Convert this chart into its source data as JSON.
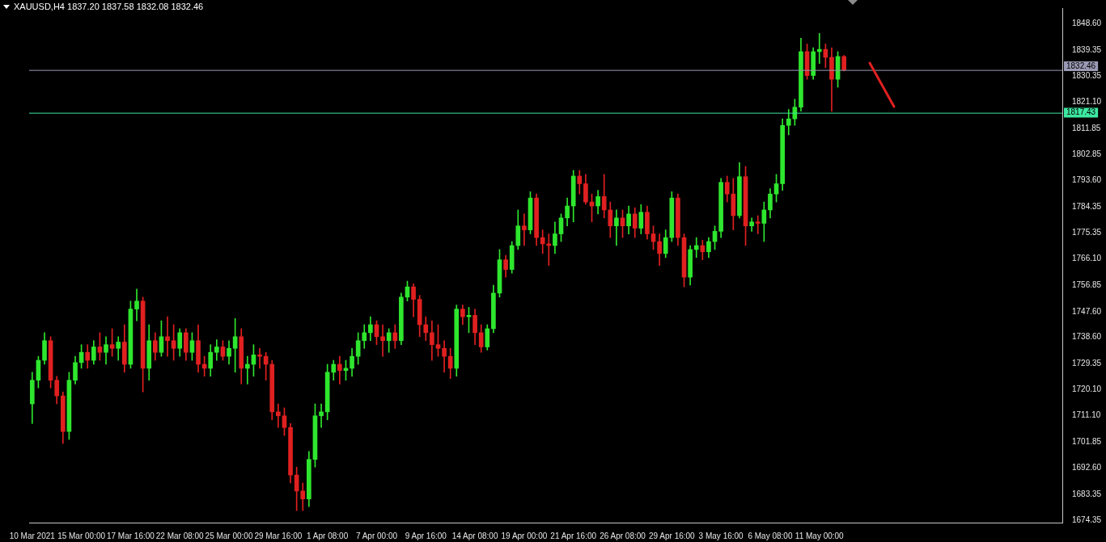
{
  "chart_data": {
    "type": "candlestick",
    "title": "XAUUSD,H4 1837.20 1837.58 1832.08 1832.46",
    "categories": [
      "10 Mar 2021",
      null,
      null,
      null,
      null,
      null,
      null,
      null,
      "15 Mar 00:00",
      null,
      null,
      null,
      null,
      null,
      null,
      null,
      "17 Mar 16:00",
      null,
      null,
      null,
      null,
      null,
      null,
      null,
      "22 Mar 08:00",
      null,
      null,
      null,
      null,
      null,
      null,
      null,
      "25 Mar 00:00",
      null,
      null,
      null,
      null,
      null,
      null,
      null,
      "29 Mar 16:00",
      null,
      null,
      null,
      null,
      null,
      null,
      null,
      "1 Apr 08:00",
      null,
      null,
      null,
      null,
      null,
      null,
      null,
      "7 Apr 00:00",
      null,
      null,
      null,
      null,
      null,
      null,
      null,
      "9 Apr 16:00",
      null,
      null,
      null,
      null,
      null,
      null,
      null,
      "14 Apr 08:00",
      null,
      null,
      null,
      null,
      null,
      null,
      null,
      "19 Apr 00:00",
      null,
      null,
      null,
      null,
      null,
      null,
      null,
      "21 Apr 16:00",
      null,
      null,
      null,
      null,
      null,
      null,
      null,
      "26 Apr 08:00",
      null,
      null,
      null,
      null,
      null,
      null,
      null,
      "29 Apr 16:00",
      null,
      null,
      null,
      null,
      null,
      null,
      null,
      "3 May 16:00",
      null,
      null,
      null,
      null,
      null,
      null,
      null,
      "6 May 08:00",
      null,
      null,
      null,
      null,
      null,
      null,
      null,
      "11 May 00:00",
      null,
      null,
      null,
      null,
      null,
      null,
      null,
      null,
      null,
      null,
      null,
      null,
      null,
      null,
      null,
      null,
      null,
      null,
      null,
      null,
      null,
      null,
      null,
      null,
      null,
      null,
      null,
      null,
      null,
      null,
      null,
      null,
      null,
      null,
      null,
      null,
      null,
      null,
      null
    ],
    "ohlc": [
      [
        1715.2,
        1726.3,
        1708.3,
        1723.5
      ],
      [
        1723.5,
        1731.9,
        1720.8,
        1730.5
      ],
      [
        1730.5,
        1740.2,
        1729.1,
        1737.4
      ],
      [
        1737.4,
        1738.8,
        1720.8,
        1723.5
      ],
      [
        1723.5,
        1724.9,
        1715.2,
        1718.0
      ],
      [
        1718.0,
        1719.4,
        1701.3,
        1705.5
      ],
      [
        1705.5,
        1726.3,
        1702.7,
        1723.5
      ],
      [
        1723.5,
        1731.9,
        1722.2,
        1729.7
      ],
      [
        1729.7,
        1736.0,
        1727.7,
        1733.3
      ],
      [
        1733.3,
        1736.0,
        1727.7,
        1730.5
      ],
      [
        1730.5,
        1737.4,
        1729.1,
        1735.2
      ],
      [
        1735.2,
        1740.2,
        1730.5,
        1733.3
      ],
      [
        1733.3,
        1738.8,
        1729.1,
        1736.0
      ],
      [
        1736.0,
        1741.6,
        1731.9,
        1734.7
      ],
      [
        1734.7,
        1738.8,
        1730.5,
        1736.9
      ],
      [
        1736.9,
        1743.0,
        1726.3,
        1729.1
      ],
      [
        1729.1,
        1751.3,
        1727.7,
        1748.5
      ],
      [
        1748.5,
        1755.5,
        1744.4,
        1751.3
      ],
      [
        1751.3,
        1752.7,
        1719.4,
        1727.7
      ],
      [
        1727.7,
        1743.0,
        1723.5,
        1737.4
      ],
      [
        1737.4,
        1740.2,
        1730.5,
        1733.3
      ],
      [
        1733.3,
        1744.4,
        1731.9,
        1738.8
      ],
      [
        1738.8,
        1745.8,
        1731.9,
        1737.4
      ],
      [
        1737.4,
        1743.0,
        1730.5,
        1734.7
      ],
      [
        1734.7,
        1741.6,
        1731.9,
        1740.2
      ],
      [
        1740.2,
        1741.6,
        1730.5,
        1733.3
      ],
      [
        1733.3,
        1740.2,
        1730.5,
        1737.4
      ],
      [
        1737.4,
        1743.0,
        1726.3,
        1729.1
      ],
      [
        1729.1,
        1731.9,
        1724.9,
        1727.7
      ],
      [
        1727.7,
        1736.0,
        1724.9,
        1733.3
      ],
      [
        1733.3,
        1737.7,
        1730.5,
        1735.2
      ],
      [
        1735.2,
        1737.4,
        1730.5,
        1731.9
      ],
      [
        1731.9,
        1737.4,
        1729.1,
        1734.7
      ],
      [
        1734.7,
        1745.2,
        1726.3,
        1738.8
      ],
      [
        1738.8,
        1741.6,
        1722.2,
        1727.7
      ],
      [
        1727.7,
        1731.9,
        1722.2,
        1729.1
      ],
      [
        1729.1,
        1736.0,
        1724.9,
        1732.4
      ],
      [
        1732.4,
        1734.7,
        1727.7,
        1731.9
      ],
      [
        1731.9,
        1733.3,
        1723.5,
        1729.1
      ],
      [
        1729.1,
        1730.5,
        1709.6,
        1712.4
      ],
      [
        1712.4,
        1715.2,
        1706.9,
        1711.0
      ],
      [
        1711.0,
        1713.8,
        1704.1,
        1706.9
      ],
      [
        1706.9,
        1708.3,
        1687.4,
        1690.2
      ],
      [
        1690.2,
        1693.0,
        1677.7,
        1684.6
      ],
      [
        1684.6,
        1687.4,
        1677.7,
        1681.8
      ],
      [
        1681.8,
        1698.5,
        1679.1,
        1695.7
      ],
      [
        1695.7,
        1715.2,
        1693.0,
        1711.0
      ],
      [
        1711.0,
        1715.2,
        1706.9,
        1712.4
      ],
      [
        1712.4,
        1729.1,
        1709.6,
        1726.3
      ],
      [
        1726.3,
        1730.5,
        1723.5,
        1729.1
      ],
      [
        1729.1,
        1731.9,
        1722.2,
        1726.9
      ],
      [
        1726.9,
        1730.5,
        1723.5,
        1727.7
      ],
      [
        1727.7,
        1734.7,
        1724.9,
        1731.9
      ],
      [
        1731.9,
        1740.2,
        1729.1,
        1737.4
      ],
      [
        1737.4,
        1743.0,
        1734.7,
        1740.2
      ],
      [
        1740.2,
        1745.8,
        1737.4,
        1743.0
      ],
      [
        1743.0,
        1744.4,
        1736.0,
        1738.8
      ],
      [
        1738.8,
        1743.0,
        1731.9,
        1737.4
      ],
      [
        1737.4,
        1741.6,
        1733.3,
        1740.2
      ],
      [
        1740.2,
        1743.0,
        1734.7,
        1737.4
      ],
      [
        1737.4,
        1754.1,
        1736.0,
        1752.7
      ],
      [
        1752.7,
        1758.3,
        1751.3,
        1756.3
      ],
      [
        1756.3,
        1757.4,
        1745.8,
        1751.9
      ],
      [
        1751.9,
        1753.3,
        1738.8,
        1743.0
      ],
      [
        1743.0,
        1745.8,
        1737.4,
        1740.2
      ],
      [
        1740.2,
        1744.4,
        1730.5,
        1736.0
      ],
      [
        1736.0,
        1743.0,
        1731.9,
        1734.7
      ],
      [
        1734.7,
        1737.4,
        1726.3,
        1731.9
      ],
      [
        1731.9,
        1734.7,
        1724.1,
        1727.7
      ],
      [
        1727.7,
        1749.9,
        1724.9,
        1748.5
      ],
      [
        1748.5,
        1749.9,
        1743.0,
        1745.8
      ],
      [
        1745.8,
        1749.1,
        1740.2,
        1746.3
      ],
      [
        1746.3,
        1748.5,
        1736.0,
        1740.2
      ],
      [
        1740.2,
        1743.0,
        1733.3,
        1735.2
      ],
      [
        1735.2,
        1743.0,
        1734.1,
        1741.6
      ],
      [
        1741.6,
        1756.9,
        1740.2,
        1754.1
      ],
      [
        1754.1,
        1769.4,
        1752.7,
        1765.8
      ],
      [
        1765.8,
        1767.4,
        1759.7,
        1762.4
      ],
      [
        1762.4,
        1772.2,
        1761.1,
        1770.8
      ],
      [
        1770.8,
        1783.3,
        1769.4,
        1777.7
      ],
      [
        1777.7,
        1781.9,
        1770.8,
        1776.3
      ],
      [
        1776.3,
        1789.7,
        1774.9,
        1787.5
      ],
      [
        1787.5,
        1788.9,
        1770.8,
        1773.6
      ],
      [
        1773.6,
        1776.3,
        1768.0,
        1771.4
      ],
      [
        1771.4,
        1774.9,
        1763.8,
        1770.8
      ],
      [
        1770.8,
        1779.1,
        1768.0,
        1774.9
      ],
      [
        1774.9,
        1781.9,
        1772.2,
        1780.5
      ],
      [
        1780.5,
        1787.5,
        1777.7,
        1784.7
      ],
      [
        1784.7,
        1797.2,
        1779.1,
        1795.2
      ],
      [
        1795.2,
        1797.2,
        1788.9,
        1792.5
      ],
      [
        1792.5,
        1795.8,
        1785.3,
        1786.1
      ],
      [
        1786.1,
        1788.9,
        1779.1,
        1784.7
      ],
      [
        1784.7,
        1790.2,
        1781.9,
        1788.0
      ],
      [
        1788.0,
        1795.8,
        1780.5,
        1783.3
      ],
      [
        1783.3,
        1786.1,
        1773.6,
        1777.7
      ],
      [
        1777.7,
        1783.3,
        1770.8,
        1780.5
      ],
      [
        1780.5,
        1783.3,
        1773.6,
        1777.7
      ],
      [
        1777.7,
        1784.7,
        1774.9,
        1781.9
      ],
      [
        1781.9,
        1784.1,
        1773.6,
        1776.9
      ],
      [
        1776.9,
        1785.2,
        1774.9,
        1782.5
      ],
      [
        1782.5,
        1784.7,
        1773.0,
        1774.9
      ],
      [
        1774.9,
        1777.7,
        1769.4,
        1772.2
      ],
      [
        1772.2,
        1774.9,
        1763.8,
        1768.0
      ],
      [
        1768.0,
        1776.3,
        1766.6,
        1773.6
      ],
      [
        1773.6,
        1789.7,
        1772.2,
        1787.5
      ],
      [
        1787.5,
        1788.9,
        1770.8,
        1773.6
      ],
      [
        1773.6,
        1774.9,
        1756.3,
        1759.7
      ],
      [
        1759.7,
        1770.8,
        1756.9,
        1769.4
      ],
      [
        1769.4,
        1773.6,
        1766.6,
        1770.8
      ],
      [
        1770.8,
        1772.7,
        1765.8,
        1768.6
      ],
      [
        1768.6,
        1773.6,
        1766.6,
        1772.2
      ],
      [
        1772.2,
        1777.7,
        1769.4,
        1775.8
      ],
      [
        1775.8,
        1794.4,
        1773.6,
        1793.0
      ],
      [
        1793.0,
        1795.2,
        1786.1,
        1788.9
      ],
      [
        1788.9,
        1794.4,
        1776.3,
        1781.3
      ],
      [
        1781.3,
        1799.9,
        1780.5,
        1795.0
      ],
      [
        1795.0,
        1798.6,
        1770.8,
        1777.7
      ],
      [
        1777.7,
        1780.5,
        1775.8,
        1779.1
      ],
      [
        1779.1,
        1781.3,
        1774.9,
        1778.6
      ],
      [
        1778.6,
        1786.1,
        1772.2,
        1783.3
      ],
      [
        1783.3,
        1790.8,
        1780.5,
        1788.9
      ],
      [
        1788.9,
        1795.8,
        1786.1,
        1792.5
      ],
      [
        1792.5,
        1815.3,
        1790.2,
        1813.0
      ],
      [
        1813.0,
        1818.6,
        1809.7,
        1815.3
      ],
      [
        1815.3,
        1822.2,
        1813.0,
        1819.4
      ],
      [
        1819.4,
        1843.6,
        1818.0,
        1838.9
      ],
      [
        1838.9,
        1841.6,
        1829.2,
        1830.5
      ],
      [
        1830.5,
        1840.3,
        1829.2,
        1838.9
      ],
      [
        1838.9,
        1845.3,
        1834.7,
        1839.7
      ],
      [
        1839.7,
        1841.6,
        1833.3,
        1836.9
      ],
      [
        1836.9,
        1840.3,
        1818.0,
        1829.2
      ],
      [
        1829.2,
        1838.9,
        1826.4,
        1837.2
      ],
      [
        1837.2,
        1837.58,
        1832.08,
        1832.46
      ],
      null,
      null,
      null,
      null,
      null,
      null,
      null,
      null,
      null,
      null,
      null,
      null,
      null,
      null,
      null,
      null,
      null,
      null,
      null,
      null,
      null,
      null,
      null,
      null,
      null,
      null,
      null,
      null,
      null,
      null,
      null,
      null,
      null,
      null,
      null
    ],
    "colors": [
      "#2ee62e",
      "#2ee62e",
      "#2ee62e",
      "#e02020",
      "#e02020",
      "#e02020",
      "#2ee62e",
      "#2ee62e",
      "#2ee62e",
      "#e02020",
      "#2ee62e",
      "#e02020",
      "#2ee62e",
      "#e02020",
      "#2ee62e",
      "#e02020",
      "#2ee62e",
      "#2ee62e",
      "#e02020",
      "#2ee62e",
      "#e02020",
      "#2ee62e",
      "#e02020",
      "#e02020",
      "#2ee62e",
      "#e02020",
      "#2ee62e",
      "#e02020",
      "#e02020",
      "#2ee62e",
      "#2ee62e",
      "#e02020",
      "#2ee62e",
      "#2ee62e",
      "#e02020",
      "#2ee62e",
      "#2ee62e",
      "#e02020",
      "#e02020",
      "#e02020",
      "#e02020",
      "#e02020",
      "#e02020",
      "#e02020",
      "#e02020",
      "#2ee62e",
      "#2ee62e",
      "#2ee62e",
      "#2ee62e",
      "#2ee62e",
      "#e02020",
      "#2ee62e",
      "#2ee62e",
      "#2ee62e",
      "#2ee62e",
      "#2ee62e",
      "#e02020",
      "#e02020",
      "#2ee62e",
      "#e02020",
      "#2ee62e",
      "#2ee62e",
      "#e02020",
      "#e02020",
      "#e02020",
      "#e02020",
      "#e02020",
      "#e02020",
      "#e02020",
      "#2ee62e",
      "#e02020",
      "#2ee62e",
      "#e02020",
      "#e02020",
      "#2ee62e",
      "#2ee62e",
      "#2ee62e",
      "#e02020",
      "#2ee62e",
      "#2ee62e",
      "#e02020",
      "#2ee62e",
      "#e02020",
      "#e02020",
      "#e02020",
      "#2ee62e",
      "#2ee62e",
      "#2ee62e",
      "#2ee62e",
      "#e02020",
      "#e02020",
      "#e02020",
      "#2ee62e",
      "#e02020",
      "#e02020",
      "#2ee62e",
      "#e02020",
      "#2ee62e",
      "#e02020",
      "#2ee62e",
      "#e02020",
      "#e02020",
      "#e02020",
      "#2ee62e",
      "#2ee62e",
      "#e02020",
      "#e02020",
      "#2ee62e",
      "#2ee62e",
      "#e02020",
      "#2ee62e",
      "#2ee62e",
      "#2ee62e",
      "#e02020",
      "#e02020",
      "#2ee62e",
      "#e02020",
      "#2ee62e",
      "#e02020",
      "#2ee62e",
      "#2ee62e",
      "#2ee62e",
      "#2ee62e",
      "#2ee62e",
      "#2ee62e",
      "#2ee62e",
      "#e02020",
      "#2ee62e",
      "#2ee62e",
      "#e02020",
      "#e02020",
      "#2ee62e",
      "#e02020",
      null,
      null,
      null,
      null,
      null,
      null,
      null,
      null,
      null,
      null,
      null,
      null,
      null,
      null,
      null,
      null,
      null,
      null,
      null,
      null,
      null,
      null,
      null,
      null,
      null,
      null,
      null,
      null,
      null,
      null,
      null,
      null,
      null,
      null,
      null
    ],
    "ylim": [
      1673.5,
      1854.2
    ],
    "yticks": [
      {
        "value": 1848.6,
        "label": "1848.60"
      },
      {
        "value": 1839.35,
        "label": "1839.35"
      },
      {
        "value": 1830.35,
        "label": "1830.35"
      },
      {
        "value": 1821.1,
        "label": "1821.10"
      },
      {
        "value": 1811.85,
        "label": "1811.85"
      },
      {
        "value": 1802.85,
        "label": "1802.85"
      },
      {
        "value": 1793.6,
        "label": "1793.60"
      },
      {
        "value": 1784.35,
        "label": "1784.35"
      },
      {
        "value": 1775.35,
        "label": "1775.35"
      },
      {
        "value": 1766.1,
        "label": "1766.10"
      },
      {
        "value": 1756.85,
        "label": "1756.85"
      },
      {
        "value": 1747.6,
        "label": "1747.60"
      },
      {
        "value": 1738.6,
        "label": "1738.60"
      },
      {
        "value": 1729.35,
        "label": "1729.35"
      },
      {
        "value": 1720.1,
        "label": "1720.10"
      },
      {
        "value": 1711.1,
        "label": "1711.10"
      },
      {
        "value": 1701.85,
        "label": "1701.85"
      },
      {
        "value": 1692.6,
        "label": "1692.60"
      },
      {
        "value": 1683.35,
        "label": "1683.35"
      },
      {
        "value": 1674.35,
        "label": "1674.35"
      }
    ],
    "ref_lines": [
      {
        "axis": "y",
        "value": 1832.46,
        "label": "1832.46",
        "color": "#9a9ab4"
      },
      {
        "axis": "y",
        "value": 1817.43,
        "label": "1817.43",
        "color": "#3de8a0"
      }
    ]
  }
}
